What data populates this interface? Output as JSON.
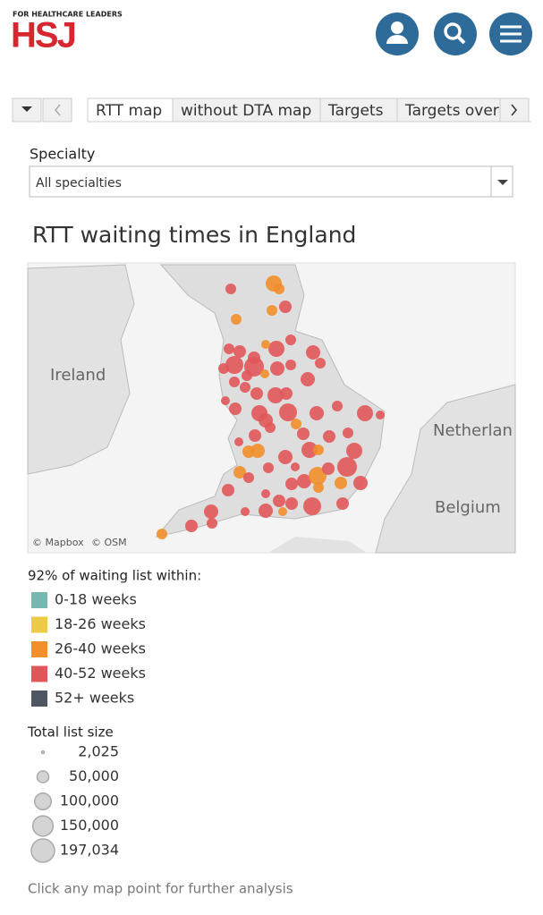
{
  "header": {
    "tagline": "FOR HEALTHCARE LEADERS",
    "logo": "HSJ"
  },
  "tabs": [
    "RTT map",
    "without DTA map",
    "Targets",
    "Targets over"
  ],
  "filter": {
    "label": "Specialty",
    "value": "All specialties"
  },
  "title": "RTT waiting times in England",
  "map": {
    "labels": [
      "Ireland",
      "Netherlan",
      "Belgium"
    ],
    "credits": [
      "© Mapbox",
      "© OSM"
    ]
  },
  "color_legend": {
    "title": "92% of waiting list within:",
    "items": [
      {
        "label": "0-18 weeks",
        "color": "#76b7b2"
      },
      {
        "label": "18-26 weeks",
        "color": "#edc948"
      },
      {
        "label": "26-40 weeks",
        "color": "#f28e2b"
      },
      {
        "label": "40-52 weeks",
        "color": "#e15759"
      },
      {
        "label": "52+ weeks",
        "color": "#4e5563"
      }
    ]
  },
  "size_legend": {
    "title": "Total list size",
    "items": [
      {
        "value": 2025,
        "label": "2,025"
      },
      {
        "value": 50000,
        "label": "50,000"
      },
      {
        "value": 100000,
        "label": "100,000"
      },
      {
        "value": 150000,
        "label": "150,000"
      },
      {
        "value": 197034,
        "label": "197,034"
      }
    ]
  },
  "footer": "Click any map point for further analysis"
}
